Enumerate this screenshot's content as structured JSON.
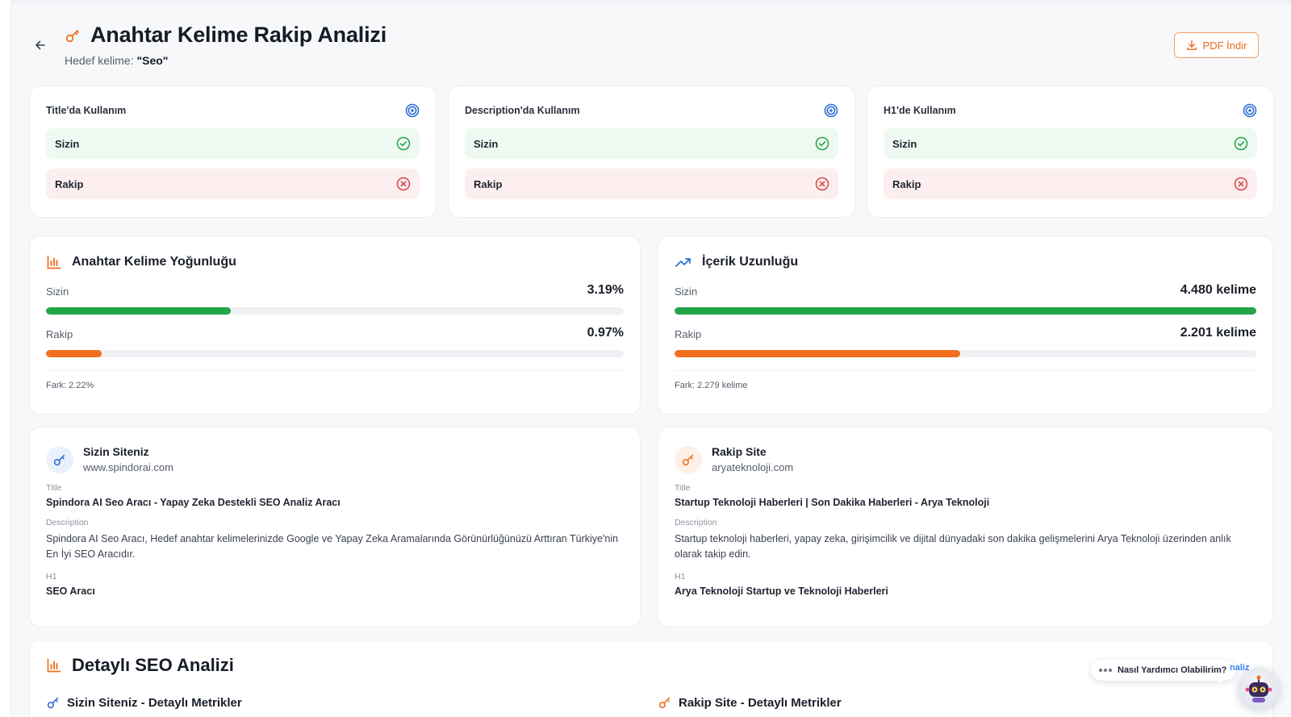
{
  "header": {
    "title": "Anahtar Kelime Rakip Analizi",
    "subtitle_label": "Hedef kelime:",
    "keyword": "\"Seo\"",
    "pdf_label": "PDF İndir"
  },
  "usage_cards": [
    {
      "title": "Title'da Kullanım",
      "you_label": "Sizin",
      "rival_label": "Rakip",
      "you_status": "check",
      "rival_status": "x"
    },
    {
      "title": "Description'da Kullanım",
      "you_label": "Sizin",
      "rival_label": "Rakip",
      "you_status": "check",
      "rival_status": "x"
    },
    {
      "title": "H1'de Kullanım",
      "you_label": "Sizin",
      "rival_label": "Rakip",
      "you_status": "check",
      "rival_status": "x"
    }
  ],
  "density": {
    "title": "Anahtar Kelime Yoğunluğu",
    "you_label": "Sizin",
    "you_value": "3.19%",
    "you_fill": 0.32,
    "rival_label": "Rakip",
    "rival_value": "0.97%",
    "rival_fill": 0.097,
    "diff": "Fark: 2.22%"
  },
  "length": {
    "title": "İçerik Uzunluğu",
    "you_label": "Sizin",
    "you_value": "4.480 kelime",
    "you_fill": 1.0,
    "rival_label": "Rakip",
    "rival_value": "2.201 kelime",
    "rival_fill": 0.491,
    "diff": "Fark: 2.279 kelime"
  },
  "your_site": {
    "name": "Sizin Siteniz",
    "url": "www.spindorai.com",
    "title_label": "Title",
    "title": "Spindora AI Seo Aracı - Yapay Zeka Destekli SEO Analiz Aracı",
    "desc_label": "Description",
    "description": "Spindora AI Seo Aracı, Hedef anahtar kelimelerinizde Google ve Yapay Zeka Aramalarında Görünürlüğünüzü Arttıran Türkiye'nin En İyi SEO Aracıdır.",
    "h1_label": "H1",
    "h1": "SEO Aracı"
  },
  "rival_site": {
    "name": "Rakip Site",
    "url": "aryateknoloji.com",
    "title_label": "Title",
    "title": "Startup Teknoloji Haberleri | Son Dakika Haberleri - Arya Teknoloji",
    "desc_label": "Description",
    "description": "Startup teknoloji haberleri, yapay zeka, girişimcilik ve dijital dünyadaki son dakika gelişmelerini Arya Teknoloji üzerinden anlık olarak takip edin.",
    "h1_label": "H1",
    "h1": "Arya Teknoloji Startup ve Teknoloji Haberleri"
  },
  "detail": {
    "title": "Detaylı SEO Analizi",
    "your_sub": "Sizin Siteniz - Detaylı Metrikler",
    "rival_sub": "Rakip Site - Detaylı Metrikler"
  },
  "chat": {
    "bubble": "Nasıl Yardımcı Olabilirim?",
    "peek": "naliz"
  },
  "colors": {
    "green": "#22a447",
    "orange": "#f26f1f",
    "blue": "#2f6fd6",
    "red": "#d64545"
  }
}
